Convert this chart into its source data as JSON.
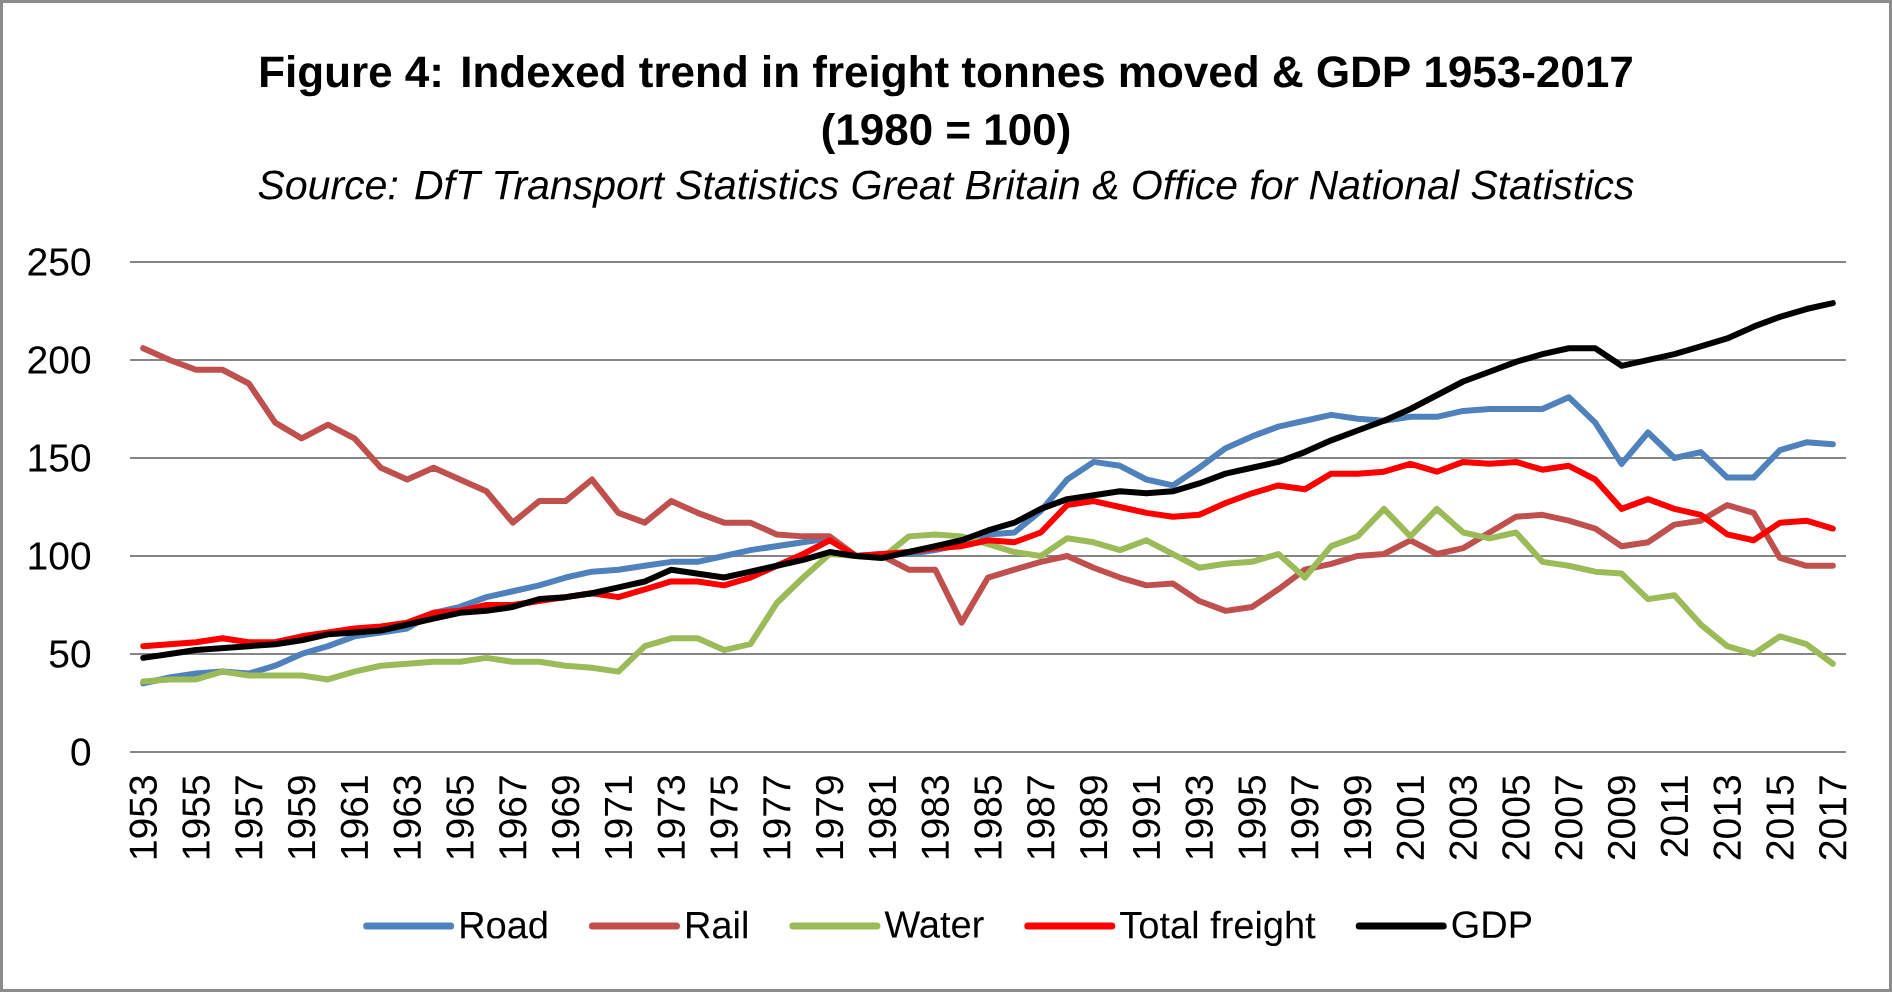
{
  "chart_data": {
    "type": "line",
    "title": "Figure 4:  Indexed trend in freight tonnes moved & GDP 1953-2017",
    "subtitle": "(1980 = 100)",
    "annotations": [
      "Source:  DfT Transport Statistics Great Britain & Office for National Statistics"
    ],
    "x": [
      1953,
      1954,
      1955,
      1956,
      1957,
      1958,
      1959,
      1960,
      1961,
      1962,
      1963,
      1964,
      1965,
      1966,
      1967,
      1968,
      1969,
      1970,
      1971,
      1972,
      1973,
      1974,
      1975,
      1976,
      1977,
      1978,
      1979,
      1980,
      1981,
      1982,
      1983,
      1984,
      1985,
      1986,
      1987,
      1988,
      1989,
      1990,
      1991,
      1992,
      1993,
      1994,
      1995,
      1996,
      1997,
      1998,
      1999,
      2000,
      2001,
      2002,
      2003,
      2004,
      2005,
      2006,
      2007,
      2008,
      2009,
      2010,
      2011,
      2012,
      2013,
      2014,
      2015,
      2016,
      2017
    ],
    "series": [
      {
        "name": "Road",
        "color": "#4f81bd",
        "values": [
          35,
          38,
          40,
          41,
          40,
          44,
          50,
          54,
          59,
          61,
          63,
          71,
          74,
          79,
          82,
          85,
          89,
          92,
          93,
          95,
          97,
          97,
          100,
          103,
          105,
          107,
          109,
          100,
          101,
          101,
          103,
          106,
          111,
          112,
          123,
          139,
          148,
          146,
          139,
          136,
          145,
          155,
          161,
          166,
          169,
          172,
          170,
          169,
          171,
          171,
          174,
          175,
          175,
          175,
          181,
          168,
          147,
          163,
          150,
          153,
          140,
          140,
          154,
          158,
          157
        ]
      },
      {
        "name": "Rail",
        "color": "#c0504d",
        "values": [
          206,
          200,
          195,
          195,
          188,
          168,
          160,
          167,
          160,
          145,
          139,
          145,
          139,
          133,
          117,
          128,
          128,
          139,
          122,
          117,
          128,
          122,
          117,
          117,
          111,
          110,
          110,
          100,
          100,
          93,
          93,
          66,
          89,
          93,
          97,
          100,
          94,
          89,
          85,
          86,
          77,
          72,
          74,
          83,
          93,
          96,
          100,
          101,
          108,
          101,
          104,
          112,
          120,
          121,
          118,
          114,
          105,
          107,
          116,
          118,
          126,
          122,
          99,
          95,
          95
        ]
      },
      {
        "name": "Water",
        "color": "#9bbb59",
        "values": [
          36,
          37,
          37,
          41,
          39,
          39,
          39,
          37,
          41,
          44,
          45,
          46,
          46,
          48,
          46,
          46,
          44,
          43,
          41,
          54,
          58,
          58,
          52,
          55,
          76,
          89,
          101,
          100,
          99,
          110,
          111,
          110,
          106,
          102,
          100,
          109,
          107,
          103,
          108,
          101,
          94,
          96,
          97,
          101,
          89,
          105,
          110,
          124,
          110,
          124,
          112,
          109,
          112,
          97,
          95,
          92,
          91,
          78,
          80,
          65,
          54,
          50,
          59,
          55,
          45
        ]
      },
      {
        "name": "Total freight",
        "color": "#ff0000",
        "values": [
          54,
          55,
          56,
          58,
          56,
          56,
          59,
          61,
          63,
          64,
          66,
          71,
          72,
          75,
          75,
          77,
          79,
          81,
          79,
          83,
          87,
          87,
          85,
          89,
          95,
          101,
          108,
          100,
          101,
          102,
          104,
          105,
          108,
          107,
          112,
          126,
          128,
          125,
          122,
          120,
          121,
          127,
          132,
          136,
          134,
          142,
          142,
          143,
          147,
          143,
          148,
          147,
          148,
          144,
          146,
          139,
          124,
          129,
          124,
          121,
          111,
          108,
          117,
          118,
          114
        ]
      },
      {
        "name": "GDP",
        "color": "#000000",
        "values": [
          48,
          50,
          52,
          53,
          54,
          55,
          57,
          60,
          61,
          62,
          65,
          68,
          71,
          72,
          74,
          78,
          79,
          81,
          84,
          87,
          93,
          91,
          89,
          92,
          95,
          98,
          102,
          100,
          99,
          102,
          105,
          108,
          113,
          117,
          124,
          129,
          131,
          133,
          132,
          133,
          137,
          142,
          145,
          148,
          153,
          159,
          164,
          169,
          175,
          182,
          189,
          194,
          199,
          203,
          206,
          206,
          197,
          200,
          203,
          207,
          211,
          217,
          222,
          226,
          229
        ]
      }
    ],
    "xlim": [
      1952.5,
      2017.5
    ],
    "xticks": [
      1953,
      1955,
      1957,
      1959,
      1961,
      1963,
      1965,
      1967,
      1969,
      1971,
      1973,
      1975,
      1977,
      1979,
      1981,
      1983,
      1985,
      1987,
      1989,
      1991,
      1993,
      1995,
      1997,
      1999,
      2001,
      2003,
      2005,
      2007,
      2009,
      2011,
      2013,
      2015,
      2017
    ],
    "ylim": [
      0,
      250
    ],
    "yticks": [
      0,
      50,
      100,
      150,
      200,
      250
    ],
    "grid": "y",
    "legend": "bottom"
  }
}
